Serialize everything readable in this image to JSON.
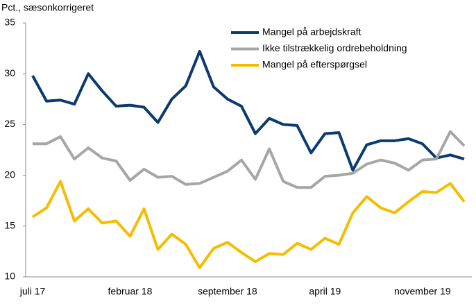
{
  "chart_data": {
    "type": "line",
    "ylabel": "Pct., sæsonkorrigeret",
    "categories": [
      "juli 17",
      null,
      null,
      null,
      null,
      null,
      null,
      "februar 18",
      null,
      null,
      null,
      null,
      null,
      null,
      "september 18",
      null,
      null,
      null,
      null,
      null,
      null,
      "april 19",
      null,
      null,
      null,
      null,
      null,
      null,
      "november 19",
      null,
      null,
      null
    ],
    "series": [
      {
        "name": "Mangel på arbejdskraft",
        "color": "#0b3a6e",
        "values": [
          29.8,
          27.3,
          27.4,
          27.0,
          30.0,
          28.3,
          26.8,
          26.9,
          26.7,
          25.2,
          27.5,
          28.8,
          32.2,
          28.7,
          27.5,
          26.8,
          24.1,
          25.6,
          25.0,
          24.9,
          22.2,
          24.1,
          24.2,
          20.5,
          23.0,
          23.4,
          23.4,
          23.6,
          23.1,
          21.7,
          22.0,
          21.6
        ]
      },
      {
        "name": "Ikke tilstrækkelig ordrebeholdning",
        "color": "#a6a6a6",
        "values": [
          23.1,
          23.1,
          23.8,
          21.6,
          22.7,
          21.7,
          21.4,
          19.5,
          20.6,
          19.8,
          19.9,
          19.1,
          19.2,
          19.8,
          20.4,
          21.5,
          19.6,
          22.6,
          19.4,
          18.8,
          18.8,
          19.9,
          20.0,
          20.2,
          21.1,
          21.5,
          21.2,
          20.5,
          21.5,
          21.6,
          24.3,
          22.9
        ]
      },
      {
        "name": "Mangel på efterspørgsel",
        "color": "#f5bd00",
        "values": [
          15.9,
          16.8,
          19.4,
          15.5,
          16.7,
          15.3,
          15.5,
          14.0,
          16.7,
          12.7,
          14.2,
          13.2,
          10.9,
          12.8,
          13.4,
          12.4,
          11.5,
          12.3,
          12.2,
          13.3,
          12.7,
          13.8,
          13.2,
          16.3,
          17.9,
          16.8,
          16.3,
          17.4,
          18.4,
          18.3,
          19.2,
          17.4
        ]
      }
    ],
    "ylim": [
      10,
      35
    ],
    "yticks": [
      10,
      15,
      20,
      25,
      30,
      35
    ],
    "legend": "upper right"
  }
}
